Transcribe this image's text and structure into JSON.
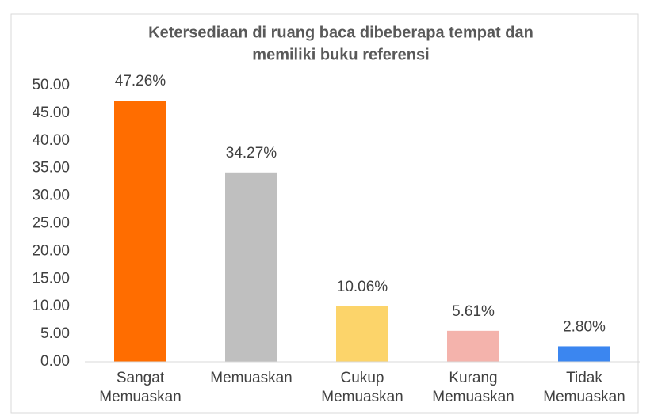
{
  "chart_data": {
    "type": "bar",
    "title": [
      "Ketersediaan di ruang baca dibeberapa tempat dan",
      "memiliki buku referensi"
    ],
    "categories": [
      "Sangat Memuaskan",
      "Memuaskan",
      "Cukup Memuaskan",
      "Kurang Memuaskan",
      "Tidak Memuaskan"
    ],
    "values": [
      47.26,
      34.27,
      10.06,
      5.61,
      2.8
    ],
    "value_labels": [
      "47.26%",
      "34.27%",
      "10.06%",
      "5.61%",
      "2.80%"
    ],
    "colors": [
      "#ff6d00",
      "#bfbfbf",
      "#fcd46a",
      "#f4b3ac",
      "#3b86f0"
    ],
    "ylim": [
      0,
      50
    ],
    "yticks": [
      {
        "value": 0,
        "label": "0.00"
      },
      {
        "value": 5,
        "label": "5.00"
      },
      {
        "value": 10,
        "label": "10.00"
      },
      {
        "value": 15,
        "label": "15.00"
      },
      {
        "value": 20,
        "label": "20.00"
      },
      {
        "value": 25,
        "label": "25.00"
      },
      {
        "value": 30,
        "label": "30.00"
      },
      {
        "value": 35,
        "label": "35.00"
      },
      {
        "value": 40,
        "label": "40.00"
      },
      {
        "value": 45,
        "label": "45.00"
      },
      {
        "value": 50,
        "label": "50.00"
      }
    ],
    "grid": false
  }
}
